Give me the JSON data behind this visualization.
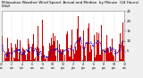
{
  "title": "Milwaukee Weather Wind Speed  Actual and Median  by Minute  (24 Hours) (Old)",
  "bar_color": "#cc0000",
  "median_color": "#0000cc",
  "actual_color_dark": "#880000",
  "background_color": "#f0f0f0",
  "plot_bg": "#ffffff",
  "ylim": [
    0,
    25
  ],
  "yticks": [
    5,
    10,
    15,
    20,
    25
  ],
  "n_points": 1440,
  "seed": 42,
  "title_fontsize": 3.0,
  "axis_fontsize": 2.8,
  "legend_fontsize": 2.6
}
